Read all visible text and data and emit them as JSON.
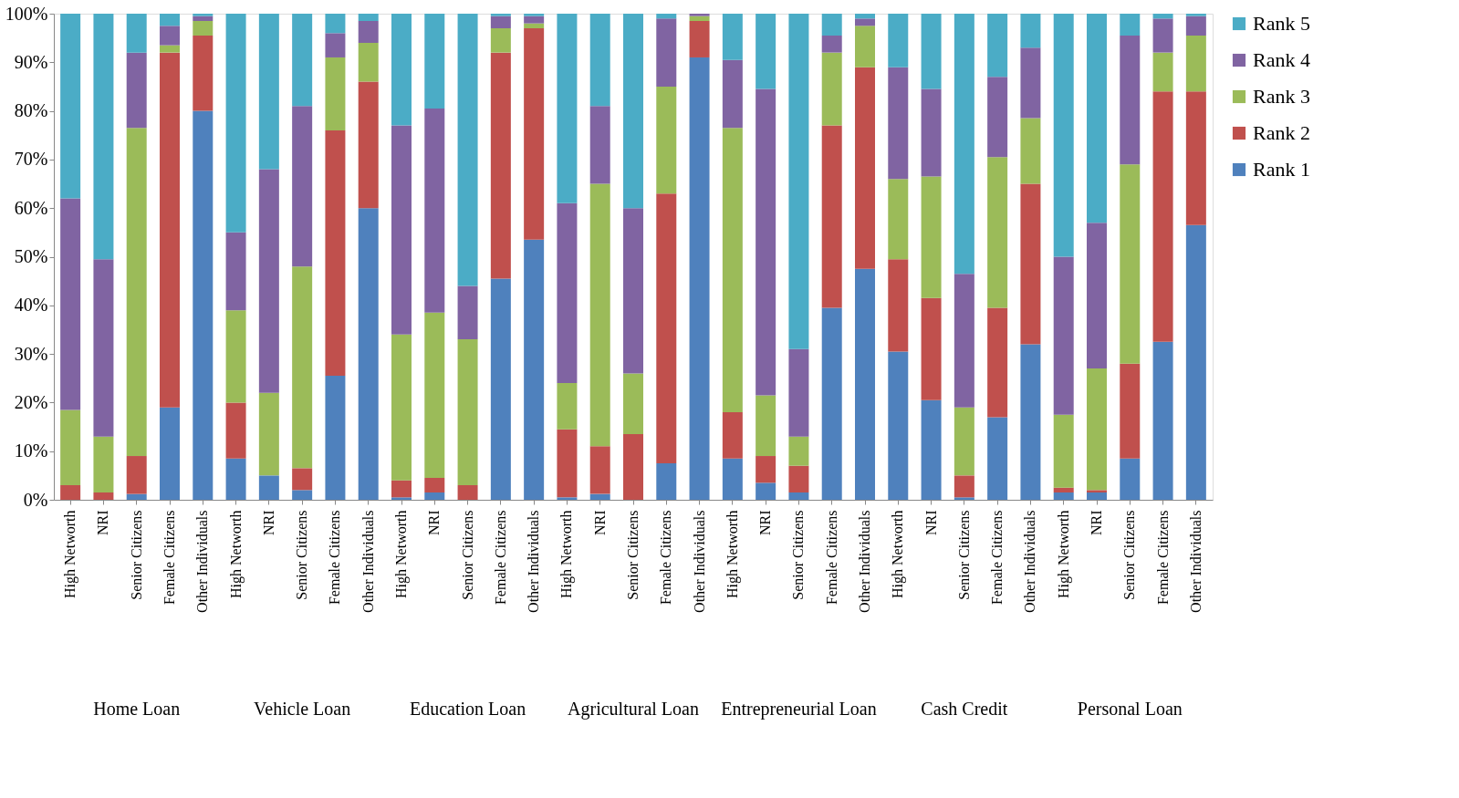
{
  "chart_data": {
    "type": "bar",
    "stacked": true,
    "legend": "right",
    "grid": false,
    "categories": [
      "High Networth",
      "NRI",
      "Senior Citizens",
      "Female Citizens",
      "Other Individuals",
      "High Networth",
      "NRI",
      "Senior Citizens",
      "Female Citizens",
      "Other Individuals",
      "High Networth",
      "NRI",
      "Senior Citizens",
      "Female Citizens",
      "Other Individuals",
      "High Networth",
      "NRI",
      "Senior Citizens",
      "Female Citizens",
      "Other Individuals",
      "High Networth",
      "NRI",
      "Senior Citizens",
      "Female Citizens",
      "Other Individuals",
      "High Networth",
      "NRI",
      "Senior Citizens",
      "Female Citizens",
      "Other Individuals",
      "High Networth",
      "NRI",
      "Senior Citizens",
      "Female Citizens",
      "Other Individuals"
    ],
    "annotations": [
      "Home Loan",
      "Vehicle Loan",
      "Education Loan",
      "Agricultural Loan",
      "Entrepreneurial Loan",
      "Cash Credit",
      "Personal Loan"
    ],
    "ylim": [
      0,
      100
    ],
    "yticks": [
      {
        "value": 0,
        "label": "0%"
      },
      {
        "value": 10,
        "label": "10%"
      },
      {
        "value": 20,
        "label": "20%"
      },
      {
        "value": 30,
        "label": "30%"
      },
      {
        "value": 40,
        "label": "40%"
      },
      {
        "value": 50,
        "label": "50%"
      },
      {
        "value": 60,
        "label": "60%"
      },
      {
        "value": 70,
        "label": "70%"
      },
      {
        "value": 80,
        "label": "80%"
      },
      {
        "value": 90,
        "label": "90%"
      },
      {
        "value": 100,
        "label": "100%"
      }
    ],
    "series": [
      {
        "name": "Rank 1",
        "color": "#4f81bd",
        "values": [
          0,
          0,
          1.2,
          19,
          80,
          8.5,
          5,
          2,
          25.5,
          60,
          0.5,
          1.5,
          0,
          45.5,
          53.5,
          0.5,
          1.2,
          0,
          7.5,
          91,
          8.5,
          3.5,
          1.5,
          39.5,
          47.5,
          30.5,
          20.5,
          0.5,
          17,
          32,
          1.5,
          1.5,
          8.5,
          32.5,
          56.5
        ]
      },
      {
        "name": "Rank 2",
        "color": "#c0504d",
        "values": [
          3,
          1.5,
          7.8,
          73,
          15.5,
          11.5,
          0,
          4.5,
          50.5,
          26,
          3.5,
          3,
          3,
          46.5,
          43.5,
          14,
          9.8,
          13.5,
          55.5,
          7.5,
          9.5,
          5.5,
          5.5,
          37.5,
          41.5,
          19,
          21,
          4.5,
          22.5,
          33,
          1,
          0.5,
          19.5,
          51.5,
          27.5
        ]
      },
      {
        "name": "Rank 3",
        "color": "#9bbb59",
        "values": [
          15.5,
          11.5,
          67.5,
          1.5,
          3,
          19,
          17,
          41.5,
          15,
          8,
          30,
          34,
          30,
          5,
          1,
          9.5,
          54,
          12.5,
          22,
          1,
          58.5,
          12.5,
          6,
          15,
          8.5,
          16.5,
          25,
          14,
          31,
          13.5,
          15,
          25,
          41,
          8,
          11.5
        ]
      },
      {
        "name": "Rank 4",
        "color": "#8064a2",
        "values": [
          43.5,
          36.5,
          15.5,
          4,
          1,
          16,
          46,
          33,
          5,
          4.5,
          43,
          42,
          11,
          2.5,
          1.5,
          37,
          16,
          34,
          14,
          0.5,
          14,
          63,
          18,
          3.5,
          1.5,
          23,
          18,
          27.5,
          16.5,
          14.5,
          32.5,
          30,
          26.5,
          7,
          4
        ]
      },
      {
        "name": "Rank 5",
        "color": "#4bacc6",
        "values": [
          38,
          50.5,
          8,
          2.5,
          0.5,
          45,
          32,
          19,
          4,
          1.5,
          23,
          19.5,
          56,
          0.5,
          0.5,
          39,
          19,
          40,
          1,
          0,
          9.5,
          15.5,
          69,
          4.5,
          1,
          11,
          15.5,
          53.5,
          13,
          7,
          50,
          43,
          4.5,
          1,
          0.5
        ]
      }
    ]
  }
}
